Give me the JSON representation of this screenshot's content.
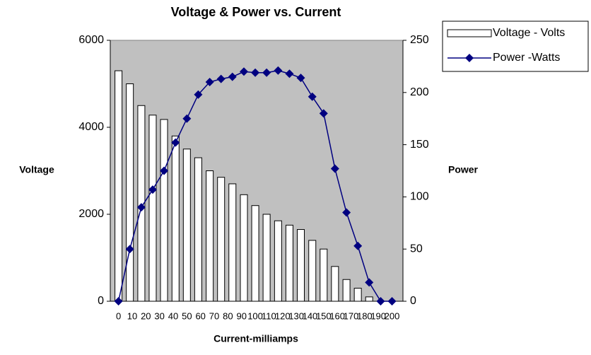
{
  "chart_data": {
    "type": "bar_line",
    "title": "Voltage & Power vs. Current",
    "x_label": "Current-milliamps",
    "y_label": "Voltage",
    "y2_label": "Power",
    "x": [
      0,
      8.3,
      16.7,
      25,
      33.3,
      41.7,
      50,
      58.3,
      66.7,
      75,
      83.3,
      91.7,
      100,
      108.3,
      116.7,
      125,
      133.3,
      141.7,
      150,
      158.3,
      166.7,
      175,
      183.3,
      191.7,
      200
    ],
    "xlim": [
      -6,
      208
    ],
    "xticks": [
      0,
      10,
      20,
      30,
      40,
      50,
      60,
      70,
      80,
      90,
      100,
      110,
      120,
      130,
      140,
      150,
      160,
      170,
      180,
      190,
      200
    ],
    "ylim": [
      0,
      6000
    ],
    "yticks": [
      0,
      2000,
      4000,
      6000
    ],
    "y2lim": [
      0,
      250
    ],
    "y2ticks": [
      0,
      50,
      100,
      150,
      200,
      250
    ],
    "series": [
      {
        "name": "Voltage - Volts",
        "kind": "bar",
        "color": "#ffffff",
        "values": [
          5300,
          5000,
          4500,
          4280,
          4180,
          3800,
          3500,
          3300,
          3000,
          2850,
          2700,
          2450,
          2200,
          2000,
          1850,
          1750,
          1650,
          1400,
          1200,
          800,
          500,
          300,
          100,
          0,
          0
        ]
      },
      {
        "name": "Power -Watts",
        "kind": "line",
        "axis": "y2",
        "color": "#000080",
        "values": [
          0,
          50,
          90,
          107,
          125,
          152,
          175,
          198,
          210,
          213,
          215,
          220,
          219,
          219,
          221,
          218,
          214,
          196,
          180,
          127,
          85,
          53,
          18,
          0,
          0
        ]
      }
    ],
    "plot_background": "#c0c0c0",
    "legend": "top-right"
  }
}
